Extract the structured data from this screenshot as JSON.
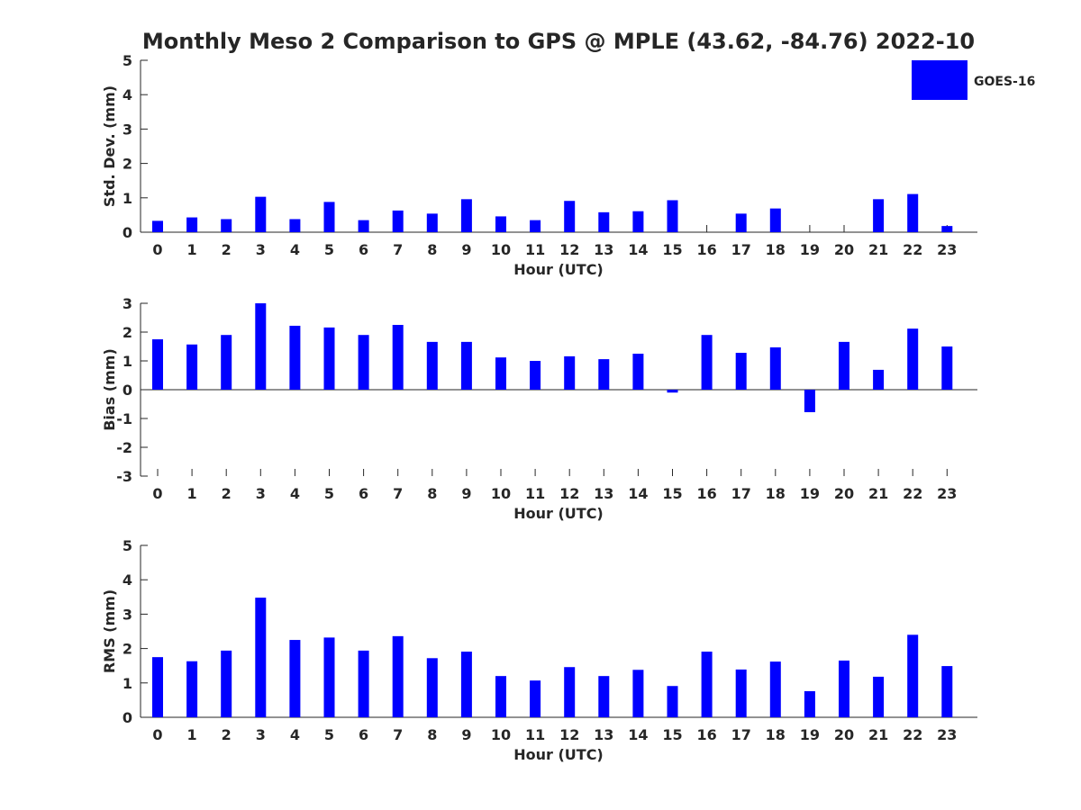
{
  "title": "Monthly Meso 2 Comparison to GPS @ MPLE (43.62, -84.76) 2022-10",
  "legend": {
    "label": "GOES-16",
    "color": "#0000ff",
    "placement": "top-right"
  },
  "colors": {
    "bar": "#0000ff",
    "axis": "#262626",
    "text": "#262626",
    "background": "#ffffff"
  },
  "chart_data": [
    {
      "type": "bar",
      "panel": "std-dev",
      "xlabel": "Hour (UTC)",
      "ylabel": "Std. Dev. (mm)",
      "ylim": [
        0,
        5
      ],
      "yticks": [
        0,
        1,
        2,
        3,
        4,
        5
      ],
      "grid": false,
      "categories": [
        "0",
        "1",
        "2",
        "3",
        "4",
        "5",
        "6",
        "7",
        "8",
        "9",
        "10",
        "11",
        "12",
        "13",
        "14",
        "15",
        "16",
        "17",
        "18",
        "19",
        "20",
        "21",
        "22",
        "23"
      ],
      "series": [
        {
          "name": "GOES-16",
          "values": [
            0.33,
            0.43,
            0.38,
            1.03,
            0.38,
            0.88,
            0.35,
            0.63,
            0.54,
            0.96,
            0.46,
            0.35,
            0.91,
            0.58,
            0.61,
            0.93,
            0.0,
            0.54,
            0.69,
            0.0,
            0.0,
            0.96,
            1.11,
            0.18
          ]
        }
      ]
    },
    {
      "type": "bar",
      "panel": "bias",
      "xlabel": "Hour (UTC)",
      "ylabel": "Bias (mm)",
      "ylim": [
        -3,
        3
      ],
      "yticks": [
        -3,
        -2,
        -1,
        0,
        1,
        2,
        3
      ],
      "grid": false,
      "categories": [
        "0",
        "1",
        "2",
        "3",
        "4",
        "5",
        "6",
        "7",
        "8",
        "9",
        "10",
        "11",
        "12",
        "13",
        "14",
        "15",
        "16",
        "17",
        "18",
        "19",
        "20",
        "21",
        "22",
        "23"
      ],
      "series": [
        {
          "name": "GOES-16",
          "values": [
            1.75,
            1.57,
            1.9,
            3.0,
            2.22,
            2.16,
            1.9,
            2.25,
            1.66,
            1.66,
            1.12,
            1.0,
            1.16,
            1.06,
            1.25,
            -0.1,
            1.9,
            1.28,
            1.47,
            -0.78,
            1.66,
            0.69,
            2.12,
            1.5
          ]
        }
      ]
    },
    {
      "type": "bar",
      "panel": "rms",
      "xlabel": "Hour (UTC)",
      "ylabel": "RMS (mm)",
      "ylim": [
        0,
        5
      ],
      "yticks": [
        0,
        1,
        2,
        3,
        4,
        5
      ],
      "grid": false,
      "categories": [
        "0",
        "1",
        "2",
        "3",
        "4",
        "5",
        "6",
        "7",
        "8",
        "9",
        "10",
        "11",
        "12",
        "13",
        "14",
        "15",
        "16",
        "17",
        "18",
        "19",
        "20",
        "21",
        "22",
        "23"
      ],
      "series": [
        {
          "name": "GOES-16",
          "values": [
            1.75,
            1.63,
            1.94,
            3.48,
            2.25,
            2.32,
            1.94,
            2.36,
            1.72,
            1.91,
            1.2,
            1.07,
            1.46,
            1.2,
            1.38,
            0.91,
            1.91,
            1.39,
            1.62,
            0.76,
            1.65,
            1.18,
            2.4,
            1.49
          ]
        }
      ]
    }
  ]
}
